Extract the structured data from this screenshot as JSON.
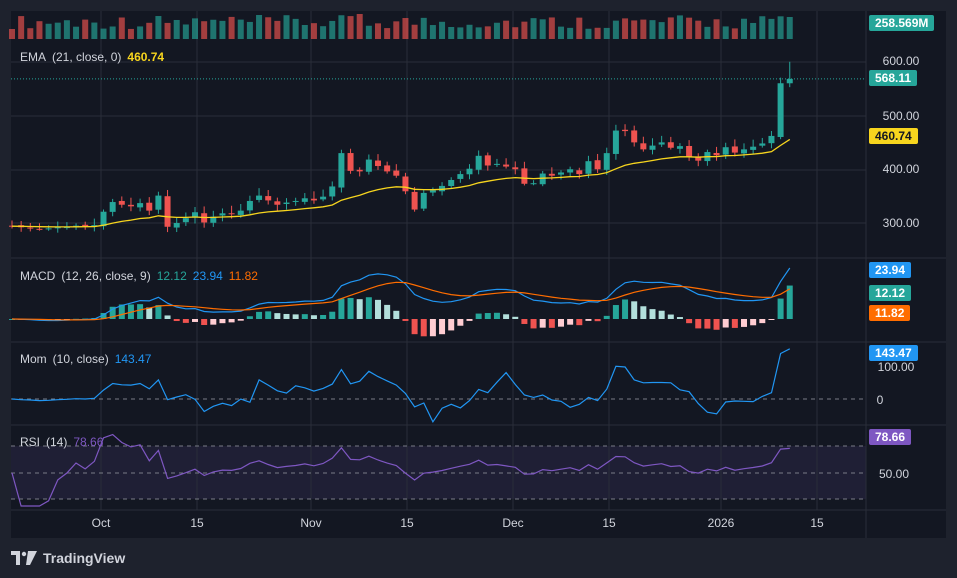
{
  "colors": {
    "up": "#26a69a",
    "down": "#ef5350",
    "ema": "#f7d51e",
    "macd": "#2196f3",
    "signal": "#ff6d00",
    "mom": "#2196f3",
    "rsi": "#7e57c2",
    "bg": "#131722",
    "axis_text": "#d1d4dc",
    "grid": "#2a2e39"
  },
  "brand": {
    "label": "TradingView",
    "icon": "tradingview-logo-icon"
  },
  "chart_data": [
    {
      "type": "bar",
      "name": "volume",
      "last_value_label": "258.569M"
    },
    {
      "type": "candlestick",
      "indicator": {
        "label": "EMA",
        "params": "(21, close, 0)",
        "value": "460.74"
      },
      "last_price": 568.11,
      "last_price_label": "568.11",
      "ema_last_label": "460.74",
      "ylim": [
        250,
        625
      ],
      "y_ticks": [
        300,
        400,
        500,
        600
      ],
      "y_tick_labels": [
        "300.00",
        "400.00",
        "500.00",
        "600.00"
      ],
      "x_tick_labels": [
        "Oct",
        "15",
        "Nov",
        "15",
        "Dec",
        "15",
        "2026",
        "15"
      ],
      "closes": [
        294,
        292,
        291,
        289,
        290,
        292,
        293,
        295,
        294,
        296,
        321,
        339,
        334,
        331,
        337,
        323,
        351,
        293,
        300,
        309,
        320,
        301,
        312,
        318,
        317,
        323,
        341,
        351,
        342,
        334,
        338,
        341,
        346,
        342,
        349,
        368,
        430,
        397,
        396,
        418,
        406,
        396,
        388,
        359,
        325,
        356,
        361,
        369,
        380,
        391,
        401,
        425,
        407,
        410,
        405,
        400,
        373,
        374,
        392,
        388,
        394,
        400,
        391,
        415,
        400,
        430,
        472,
        471,
        450,
        437,
        444,
        450,
        440,
        443,
        422,
        416,
        432,
        426,
        441,
        431,
        437,
        442,
        448,
        462,
        560,
        568
      ]
    },
    {
      "type": "line",
      "name": "MACD",
      "indicator": {
        "label": "MACD",
        "params": "(12, 26, close, 9)"
      },
      "values": {
        "histogram": "12.12",
        "macd": "23.94",
        "signal": "11.82"
      }
    },
    {
      "type": "line",
      "name": "Mom",
      "indicator": {
        "label": "Mom",
        "params": "(10, close)",
        "value": "143.47"
      },
      "last_label": "143.47",
      "y_tick_labels": [
        "100.00",
        "0"
      ]
    },
    {
      "type": "line",
      "name": "RSI",
      "indicator": {
        "label": "RSI",
        "params": "(14)",
        "value": "78.66"
      },
      "last_label": "78.66",
      "y_tick_labels": [
        "50.00"
      ]
    }
  ]
}
